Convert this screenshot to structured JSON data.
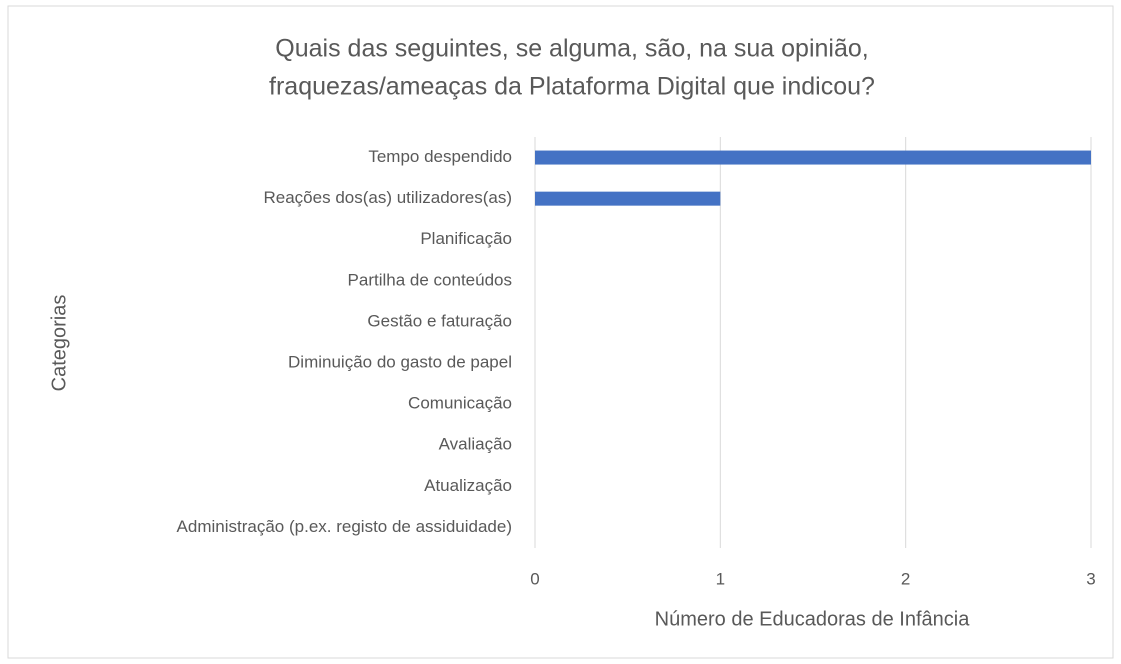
{
  "chart_data": {
    "type": "bar",
    "orientation": "horizontal",
    "title": [
      "Quais das seguintes, se alguma, são, na sua opinião,",
      "fraquezas/ameaças da Plataforma Digital que indicou?"
    ],
    "xlabel": "Número de Educadoras de Infância",
    "ylabel": "Categorias",
    "categories": [
      "Tempo despendido",
      "Reações dos(as) utilizadores(as)",
      "Planificação",
      "Partilha de conteúdos",
      "Gestão e faturação",
      "Diminuição do gasto de papel",
      "Comunicação",
      "Avaliação",
      "Atualização",
      "Administração (p.ex. registo de assiduidade)"
    ],
    "values": [
      3,
      1,
      0,
      0,
      0,
      0,
      0,
      0,
      0,
      0
    ],
    "color": "#4472c4",
    "xlim": [
      0,
      3
    ],
    "xticks": [
      0,
      1,
      2,
      3
    ],
    "grid": true
  }
}
